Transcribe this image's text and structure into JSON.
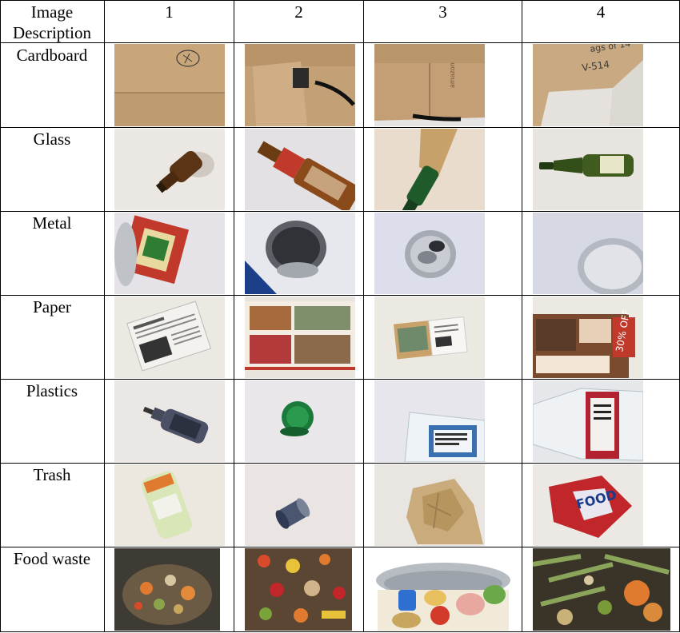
{
  "table": {
    "header": {
      "desc_line1": "Image",
      "desc_line2": "Description",
      "columns": [
        "1",
        "2",
        "3",
        "4"
      ]
    },
    "rows": [
      {
        "label": "Cardboard"
      },
      {
        "label": "Glass"
      },
      {
        "label": "Metal"
      },
      {
        "label": "Paper"
      },
      {
        "label": "Plastics"
      },
      {
        "label": "Trash"
      },
      {
        "label": "Food waste"
      }
    ]
  },
  "photos": {
    "cardboard": [
      "cardboard-box-icon",
      "cardboard-box-icon",
      "cardboard-box-icon",
      "cardboard-box-icon"
    ],
    "glass": [
      "brown-bottle-icon",
      "brown-bottle-icon",
      "green-bottle-icon",
      "green-bottle-icon"
    ],
    "metal": [
      "tin-can-icon",
      "tin-can-icon",
      "soda-can-icon",
      "aluminum-can-icon"
    ],
    "paper": [
      "newspaper-icon",
      "magazine-icon",
      "paper-scrap-icon",
      "brochure-icon"
    ],
    "plastics": [
      "plastic-bottle-icon",
      "bottle-cap-icon",
      "jug-icon",
      "water-bottle-icon"
    ],
    "trash": [
      "snack-pouch-icon",
      "capsule-icon",
      "crumpled-bag-icon",
      "chip-bag-icon"
    ],
    "food_waste": [
      "compost-icon",
      "compost-icon",
      "food-scraps-icon",
      "compost-icon"
    ]
  },
  "colors": {
    "cardboard": "#c9a57a",
    "paper_bg": "#ece8e2",
    "glass_bg": "#e9e4df",
    "metal_bg": "#d8dce6",
    "compost": "#5a4632"
  }
}
